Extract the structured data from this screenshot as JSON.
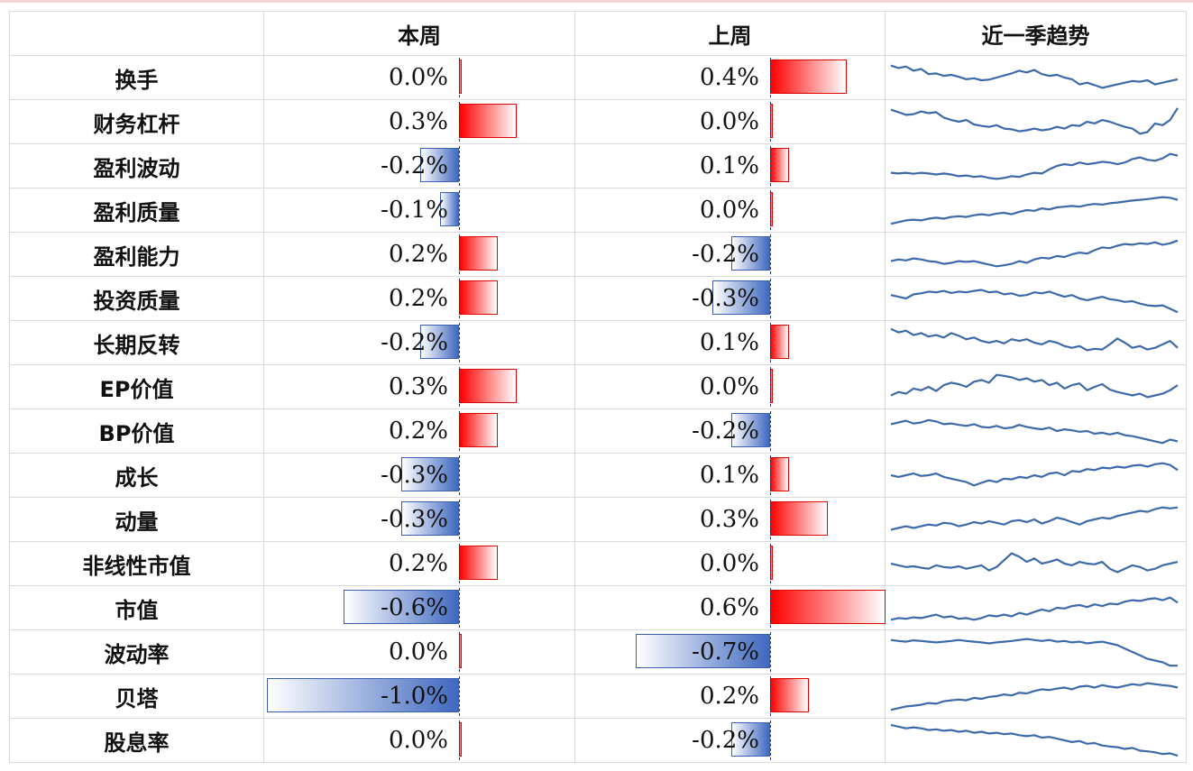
{
  "headers": {
    "name": "",
    "this_week": "本周",
    "last_week": "上周",
    "trend": "近一季趋势"
  },
  "colors": {
    "positive": "#ff0000",
    "negative": "#3f68c0",
    "spark": "#3c6aa8",
    "grid": "#d9d9d9"
  },
  "chart_data": {
    "type": "table",
    "value_unit": "%",
    "axis_range": [
      -1.0,
      0.7
    ],
    "rows": [
      {
        "name": "换手",
        "this_week": 0.0,
        "this_week_label": "0.0%",
        "last_week": 0.4,
        "last_week_label": "0.4%",
        "trend": [
          0.85,
          0.78,
          0.82,
          0.7,
          0.75,
          0.6,
          0.62,
          0.55,
          0.58,
          0.52,
          0.45,
          0.48,
          0.42,
          0.44,
          0.5,
          0.56,
          0.62,
          0.7,
          0.65,
          0.72,
          0.6,
          0.55,
          0.58,
          0.5,
          0.45,
          0.3,
          0.35,
          0.28,
          0.2,
          0.25,
          0.3,
          0.35,
          0.4,
          0.38,
          0.42,
          0.3,
          0.35,
          0.4,
          0.45
        ]
      },
      {
        "name": "财务杠杆",
        "this_week": 0.3,
        "this_week_label": "0.3%",
        "last_week": 0.0,
        "last_week_label": "0.0%",
        "trend": [
          0.85,
          0.78,
          0.7,
          0.72,
          0.8,
          0.75,
          0.78,
          0.62,
          0.55,
          0.5,
          0.55,
          0.42,
          0.38,
          0.35,
          0.4,
          0.3,
          0.28,
          0.22,
          0.25,
          0.3,
          0.25,
          0.28,
          0.35,
          0.3,
          0.4,
          0.38,
          0.5,
          0.45,
          0.55,
          0.5,
          0.42,
          0.35,
          0.3,
          0.15,
          0.2,
          0.45,
          0.4,
          0.55,
          0.9
        ]
      },
      {
        "name": "盈利波动",
        "this_week": -0.2,
        "this_week_label": "-0.2%",
        "last_week": 0.1,
        "last_week_label": "0.1%",
        "trend": [
          0.3,
          0.28,
          0.3,
          0.27,
          0.3,
          0.28,
          0.25,
          0.28,
          0.25,
          0.2,
          0.22,
          0.18,
          0.2,
          0.15,
          0.12,
          0.15,
          0.2,
          0.18,
          0.25,
          0.3,
          0.28,
          0.4,
          0.5,
          0.55,
          0.52,
          0.6,
          0.55,
          0.58,
          0.62,
          0.6,
          0.55,
          0.6,
          0.7,
          0.75,
          0.68,
          0.65,
          0.72,
          0.85,
          0.8
        ]
      },
      {
        "name": "盈利质量",
        "this_week": -0.1,
        "this_week_label": "-0.1%",
        "last_week": 0.0,
        "last_week_label": "0.0%",
        "trend": [
          0.1,
          0.15,
          0.2,
          0.22,
          0.2,
          0.25,
          0.28,
          0.25,
          0.3,
          0.32,
          0.3,
          0.35,
          0.38,
          0.35,
          0.4,
          0.42,
          0.38,
          0.45,
          0.5,
          0.48,
          0.55,
          0.52,
          0.58,
          0.6,
          0.62,
          0.6,
          0.65,
          0.68,
          0.66,
          0.7,
          0.72,
          0.75,
          0.78,
          0.8,
          0.82,
          0.85,
          0.88,
          0.86,
          0.8
        ]
      },
      {
        "name": "盈利能力",
        "this_week": 0.2,
        "this_week_label": "0.2%",
        "last_week": -0.2,
        "last_week_label": "-0.2%",
        "trend": [
          0.3,
          0.35,
          0.32,
          0.38,
          0.35,
          0.3,
          0.28,
          0.22,
          0.25,
          0.3,
          0.28,
          0.3,
          0.25,
          0.2,
          0.15,
          0.18,
          0.22,
          0.3,
          0.25,
          0.35,
          0.4,
          0.38,
          0.45,
          0.42,
          0.5,
          0.55,
          0.52,
          0.62,
          0.7,
          0.68,
          0.75,
          0.8,
          0.78,
          0.82,
          0.8,
          0.85,
          0.78,
          0.82,
          0.9
        ]
      },
      {
        "name": "投资质量",
        "this_week": 0.2,
        "this_week_label": "0.2%",
        "last_week": -0.3,
        "last_week_label": "-0.3%",
        "trend": [
          0.6,
          0.55,
          0.5,
          0.62,
          0.65,
          0.7,
          0.68,
          0.72,
          0.66,
          0.7,
          0.68,
          0.72,
          0.75,
          0.68,
          0.7,
          0.62,
          0.65,
          0.58,
          0.6,
          0.68,
          0.65,
          0.7,
          0.62,
          0.55,
          0.6,
          0.5,
          0.45,
          0.5,
          0.55,
          0.48,
          0.45,
          0.4,
          0.42,
          0.35,
          0.3,
          0.28,
          0.3,
          0.2,
          0.1
        ]
      },
      {
        "name": "长期反转",
        "this_week": -0.2,
        "this_week_label": "-0.2%",
        "last_week": 0.1,
        "last_week_label": "0.1%",
        "trend": [
          0.9,
          0.8,
          0.85,
          0.72,
          0.78,
          0.68,
          0.72,
          0.65,
          0.78,
          0.7,
          0.6,
          0.65,
          0.55,
          0.5,
          0.55,
          0.48,
          0.6,
          0.55,
          0.6,
          0.5,
          0.45,
          0.55,
          0.5,
          0.4,
          0.35,
          0.4,
          0.28,
          0.32,
          0.3,
          0.45,
          0.62,
          0.5,
          0.35,
          0.4,
          0.3,
          0.35,
          0.45,
          0.55,
          0.35
        ]
      },
      {
        "name": "EP价值",
        "this_week": 0.3,
        "this_week_label": "0.3%",
        "last_week": 0.0,
        "last_week_label": "0.0%",
        "trend": [
          0.25,
          0.35,
          0.3,
          0.45,
          0.4,
          0.5,
          0.38,
          0.55,
          0.62,
          0.58,
          0.5,
          0.65,
          0.7,
          0.62,
          0.85,
          0.82,
          0.78,
          0.7,
          0.75,
          0.65,
          0.7,
          0.55,
          0.62,
          0.45,
          0.55,
          0.6,
          0.4,
          0.5,
          0.58,
          0.42,
          0.35,
          0.3,
          0.25,
          0.3,
          0.2,
          0.25,
          0.3,
          0.4,
          0.55
        ]
      },
      {
        "name": "BP价值",
        "this_week": 0.2,
        "this_week_label": "0.2%",
        "last_week": -0.2,
        "last_week_label": "-0.2%",
        "trend": [
          0.7,
          0.75,
          0.8,
          0.72,
          0.75,
          0.82,
          0.78,
          0.7,
          0.72,
          0.68,
          0.65,
          0.7,
          0.62,
          0.6,
          0.65,
          0.58,
          0.6,
          0.68,
          0.62,
          0.58,
          0.55,
          0.6,
          0.5,
          0.55,
          0.52,
          0.48,
          0.5,
          0.42,
          0.45,
          0.4,
          0.45,
          0.38,
          0.35,
          0.3,
          0.25,
          0.2,
          0.15,
          0.25,
          0.2
        ]
      },
      {
        "name": "成长",
        "this_week": -0.3,
        "this_week_label": "-0.3%",
        "last_week": 0.1,
        "last_week_label": "0.1%",
        "trend": [
          0.5,
          0.45,
          0.5,
          0.55,
          0.48,
          0.5,
          0.55,
          0.45,
          0.4,
          0.35,
          0.3,
          0.2,
          0.28,
          0.35,
          0.3,
          0.4,
          0.38,
          0.45,
          0.42,
          0.5,
          0.45,
          0.55,
          0.58,
          0.5,
          0.62,
          0.6,
          0.68,
          0.65,
          0.72,
          0.7,
          0.75,
          0.72,
          0.78,
          0.8,
          0.75,
          0.82,
          0.85,
          0.8,
          0.65
        ]
      },
      {
        "name": "动量",
        "this_week": -0.3,
        "this_week_label": "-0.3%",
        "last_week": 0.3,
        "last_week_label": "0.3%",
        "trend": [
          0.2,
          0.25,
          0.3,
          0.25,
          0.3,
          0.35,
          0.32,
          0.4,
          0.38,
          0.3,
          0.35,
          0.42,
          0.38,
          0.45,
          0.4,
          0.35,
          0.45,
          0.48,
          0.42,
          0.5,
          0.38,
          0.45,
          0.55,
          0.5,
          0.42,
          0.35,
          0.45,
          0.5,
          0.55,
          0.52,
          0.6,
          0.65,
          0.7,
          0.75,
          0.72,
          0.8,
          0.85,
          0.82,
          0.85
        ]
      },
      {
        "name": "非线性市值",
        "this_week": 0.2,
        "this_week_label": "0.2%",
        "last_week": 0.0,
        "last_week_label": "0.0%",
        "trend": [
          0.5,
          0.45,
          0.4,
          0.42,
          0.38,
          0.35,
          0.45,
          0.4,
          0.38,
          0.42,
          0.35,
          0.4,
          0.45,
          0.3,
          0.4,
          0.6,
          0.8,
          0.7,
          0.55,
          0.65,
          0.5,
          0.55,
          0.62,
          0.5,
          0.45,
          0.55,
          0.5,
          0.48,
          0.55,
          0.35,
          0.25,
          0.35,
          0.45,
          0.4,
          0.3,
          0.35,
          0.45,
          0.5,
          0.55
        ]
      },
      {
        "name": "市值",
        "this_week": -0.6,
        "this_week_label": "-0.6%",
        "last_week": 0.6,
        "last_week_label": "0.6%",
        "trend": [
          0.15,
          0.2,
          0.18,
          0.22,
          0.2,
          0.25,
          0.3,
          0.22,
          0.25,
          0.18,
          0.2,
          0.15,
          0.2,
          0.28,
          0.25,
          0.3,
          0.25,
          0.35,
          0.3,
          0.38,
          0.45,
          0.4,
          0.5,
          0.48,
          0.55,
          0.58,
          0.52,
          0.6,
          0.55,
          0.62,
          0.6,
          0.68,
          0.72,
          0.7,
          0.75,
          0.78,
          0.72,
          0.8,
          0.65
        ]
      },
      {
        "name": "波动率",
        "this_week": 0.0,
        "this_week_label": "0.0%",
        "last_week": -0.7,
        "last_week_label": "-0.7%",
        "trend": [
          0.85,
          0.82,
          0.8,
          0.84,
          0.82,
          0.8,
          0.78,
          0.8,
          0.82,
          0.85,
          0.82,
          0.8,
          0.78,
          0.75,
          0.78,
          0.8,
          0.82,
          0.85,
          0.88,
          0.85,
          0.82,
          0.85,
          0.8,
          0.82,
          0.78,
          0.8,
          0.75,
          0.78,
          0.8,
          0.75,
          0.7,
          0.6,
          0.5,
          0.4,
          0.3,
          0.25,
          0.2,
          0.1,
          0.1
        ]
      },
      {
        "name": "贝塔",
        "this_week": -1.0,
        "this_week_label": "-1.0%",
        "last_week": 0.2,
        "last_week_label": "0.2%",
        "trend": [
          0.1,
          0.15,
          0.2,
          0.22,
          0.25,
          0.3,
          0.28,
          0.35,
          0.38,
          0.4,
          0.38,
          0.45,
          0.42,
          0.48,
          0.5,
          0.55,
          0.52,
          0.6,
          0.58,
          0.65,
          0.7,
          0.68,
          0.72,
          0.75,
          0.7,
          0.78,
          0.8,
          0.75,
          0.82,
          0.78,
          0.75,
          0.8,
          0.85,
          0.82,
          0.88,
          0.85,
          0.82,
          0.8,
          0.75
        ]
      },
      {
        "name": "股息率",
        "this_week": 0.0,
        "this_week_label": "0.0%",
        "last_week": -0.2,
        "last_week_label": "-0.2%",
        "trend": [
          0.95,
          0.9,
          0.85,
          0.88,
          0.85,
          0.8,
          0.82,
          0.78,
          0.8,
          0.75,
          0.78,
          0.72,
          0.75,
          0.7,
          0.72,
          0.68,
          0.7,
          0.65,
          0.62,
          0.65,
          0.58,
          0.6,
          0.55,
          0.5,
          0.45,
          0.48,
          0.4,
          0.42,
          0.35,
          0.32,
          0.3,
          0.25,
          0.28,
          0.2,
          0.18,
          0.15,
          0.1,
          0.12,
          0.05
        ]
      }
    ]
  }
}
